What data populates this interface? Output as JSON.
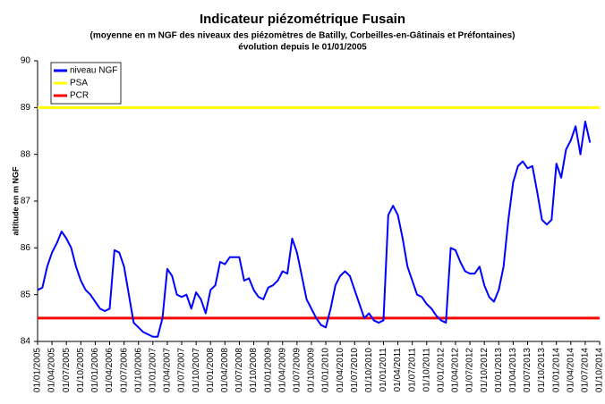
{
  "chart_data": {
    "type": "line",
    "title": "Indicateur piézométrique Fusain",
    "subtitle": [
      "(moyenne en m NGF des niveaux des piézomètres de Batilly, Corbeilles-en-Gâtinais et Préfontaines)",
      "évolution depuis le 01/01/2005"
    ],
    "y_label": "altitude en m NGF",
    "ylim": [
      84,
      90
    ],
    "yticks": [
      84,
      85,
      86,
      87,
      88,
      89,
      90
    ],
    "xlim": [
      "01/01/2005",
      "01/10/2014"
    ],
    "xticks": [
      "01/01/2005",
      "01/04/2005",
      "01/07/2005",
      "01/10/2005",
      "01/01/2006",
      "01/04/2006",
      "01/07/2006",
      "01/10/2006",
      "01/01/2007",
      "01/04/2007",
      "01/07/2007",
      "01/10/2007",
      "01/01/2008",
      "01/04/2008",
      "01/07/2008",
      "01/10/2008",
      "01/01/2009",
      "01/04/2009",
      "01/07/2009",
      "01/10/2009",
      "01/01/2010",
      "01/04/2010",
      "01/07/2010",
      "01/10/2010",
      "01/01/2011",
      "01/04/2011",
      "01/07/2011",
      "01/10/2011",
      "01/01/2012",
      "01/04/2012",
      "01/07/2012",
      "01/10/2012",
      "01/01/2013",
      "01/04/2013",
      "01/07/2013",
      "01/10/2013",
      "01/01/2014",
      "01/04/2014",
      "01/07/2014",
      "01/10/2014"
    ],
    "grid": false,
    "legend": "top-left",
    "x": [
      "01/01/2005",
      "01/02/2005",
      "01/03/2005",
      "01/04/2005",
      "01/05/2005",
      "01/06/2005",
      "01/07/2005",
      "01/08/2005",
      "01/09/2005",
      "01/10/2005",
      "01/11/2005",
      "01/12/2005",
      "01/01/2006",
      "01/02/2006",
      "01/03/2006",
      "01/04/2006",
      "01/05/2006",
      "01/06/2006",
      "01/07/2006",
      "01/08/2006",
      "01/09/2006",
      "01/10/2006",
      "01/11/2006",
      "01/12/2006",
      "01/01/2007",
      "01/02/2007",
      "01/03/2007",
      "01/04/2007",
      "01/05/2007",
      "01/06/2007",
      "01/07/2007",
      "01/08/2007",
      "01/09/2007",
      "01/10/2007",
      "01/11/2007",
      "01/12/2007",
      "01/01/2008",
      "01/02/2008",
      "01/03/2008",
      "01/04/2008",
      "01/05/2008",
      "01/06/2008",
      "01/07/2008",
      "01/08/2008",
      "01/09/2008",
      "01/10/2008",
      "01/11/2008",
      "01/12/2008",
      "01/01/2009",
      "01/02/2009",
      "01/03/2009",
      "01/04/2009",
      "01/05/2009",
      "01/06/2009",
      "01/07/2009",
      "01/08/2009",
      "01/09/2009",
      "01/10/2009",
      "01/11/2009",
      "01/12/2009",
      "01/01/2010",
      "01/02/2010",
      "01/03/2010",
      "01/04/2010",
      "01/05/2010",
      "01/06/2010",
      "01/07/2010",
      "01/08/2010",
      "01/09/2010",
      "01/10/2010",
      "01/11/2010",
      "01/12/2010",
      "01/01/2011",
      "01/02/2011",
      "01/03/2011",
      "01/04/2011",
      "01/05/2011",
      "01/06/2011",
      "01/07/2011",
      "01/08/2011",
      "01/09/2011",
      "01/10/2011",
      "01/11/2011",
      "01/12/2011",
      "01/01/2012",
      "01/02/2012",
      "01/03/2012",
      "01/04/2012",
      "01/05/2012",
      "01/06/2012",
      "01/07/2012",
      "01/08/2012",
      "01/09/2012",
      "01/10/2012",
      "01/11/2012",
      "01/12/2012",
      "01/01/2013",
      "01/02/2013",
      "01/03/2013",
      "01/04/2013",
      "01/05/2013",
      "01/06/2013",
      "01/07/2013",
      "01/08/2013",
      "01/09/2013",
      "01/10/2013",
      "01/11/2013",
      "01/12/2013",
      "01/01/2014",
      "01/02/2014",
      "01/03/2014",
      "01/04/2014",
      "01/05/2014",
      "01/06/2014",
      "01/07/2014",
      "01/08/2014"
    ],
    "series": [
      {
        "name": "niveau NGF",
        "color": "#0000ff",
        "values": [
          85.1,
          85.15,
          85.6,
          85.9,
          86.1,
          86.35,
          86.2,
          86.0,
          85.6,
          85.3,
          85.1,
          85.0,
          84.85,
          84.7,
          84.65,
          84.7,
          85.95,
          85.9,
          85.6,
          85.0,
          84.4,
          84.3,
          84.2,
          84.15,
          84.1,
          84.1,
          84.5,
          85.55,
          85.4,
          85.0,
          84.95,
          85.0,
          84.7,
          85.05,
          84.9,
          84.6,
          85.1,
          85.2,
          85.7,
          85.65,
          85.8,
          85.8,
          85.8,
          85.3,
          85.35,
          85.1,
          84.95,
          84.9,
          85.15,
          85.2,
          85.3,
          85.5,
          85.45,
          86.2,
          85.9,
          85.4,
          84.9,
          84.7,
          84.5,
          84.35,
          84.3,
          84.7,
          85.2,
          85.4,
          85.5,
          85.4,
          85.1,
          84.8,
          84.5,
          84.6,
          84.45,
          84.4,
          84.45,
          86.7,
          86.9,
          86.7,
          86.2,
          85.6,
          85.3,
          85.0,
          84.95,
          84.8,
          84.7,
          84.55,
          84.45,
          84.4,
          86.0,
          85.95,
          85.7,
          85.5,
          85.45,
          85.45,
          85.6,
          85.2,
          84.95,
          84.85,
          85.1,
          85.6,
          86.6,
          87.4,
          87.75,
          87.85,
          87.7,
          87.75,
          87.2,
          86.6,
          86.5,
          86.6,
          87.8,
          87.5,
          88.1,
          88.3,
          88.6,
          88.0,
          88.7,
          88.25
        ]
      }
    ],
    "thresholds": [
      {
        "name": "PSA",
        "color": "#ffff00",
        "value": 89
      },
      {
        "name": "PCR",
        "color": "#ff0000",
        "value": 84.5
      }
    ]
  }
}
